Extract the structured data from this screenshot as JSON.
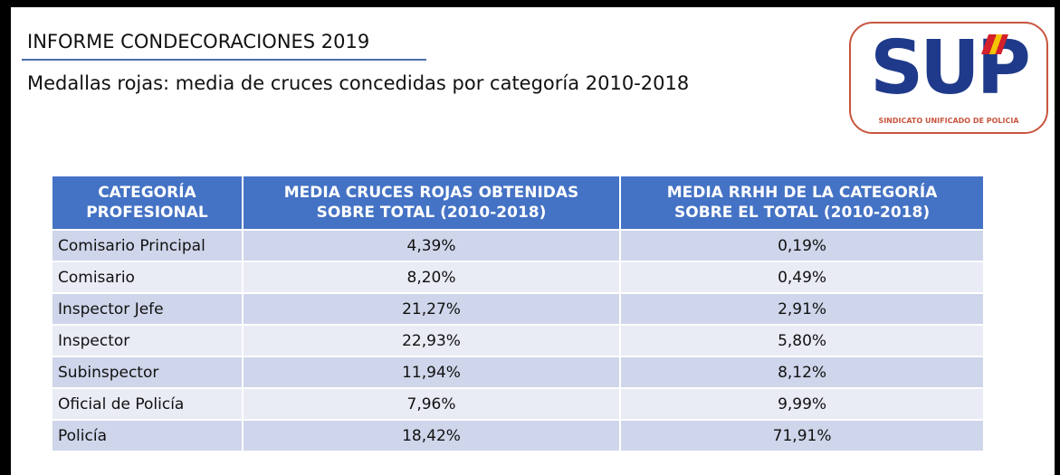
{
  "header": {
    "title": "INFORME CONDECORACIONES 2019",
    "subtitle": "Medallas rojas: media de cruces concedidas por categoría 2010-2018"
  },
  "logo": {
    "text": "SUP",
    "subtext": "SINDICATO UNIFICADO DE POLICIA"
  },
  "table": {
    "columns": [
      [
        "CATEGORÍA",
        "PROFESIONAL"
      ],
      [
        "MEDIA CRUCES ROJAS OBTENIDAS",
        "SOBRE TOTAL (2010-2018)"
      ],
      [
        "MEDIA RRHH DE LA CATEGORÍA",
        "SOBRE EL TOTAL (2010-2018)"
      ]
    ],
    "rows": [
      [
        "Comisario Principal",
        "4,39%",
        "0,19%"
      ],
      [
        "Comisario",
        "8,20%",
        "0,49%"
      ],
      [
        "Inspector Jefe",
        "21,27%",
        "2,91%"
      ],
      [
        "Inspector",
        "22,93%",
        "5,80%"
      ],
      [
        "Subinspector",
        "11,94%",
        "8,12%"
      ],
      [
        "Oficial de Policía",
        "7,96%",
        "9,99%"
      ],
      [
        "Policía",
        "18,42%",
        "71,91%"
      ]
    ]
  }
}
